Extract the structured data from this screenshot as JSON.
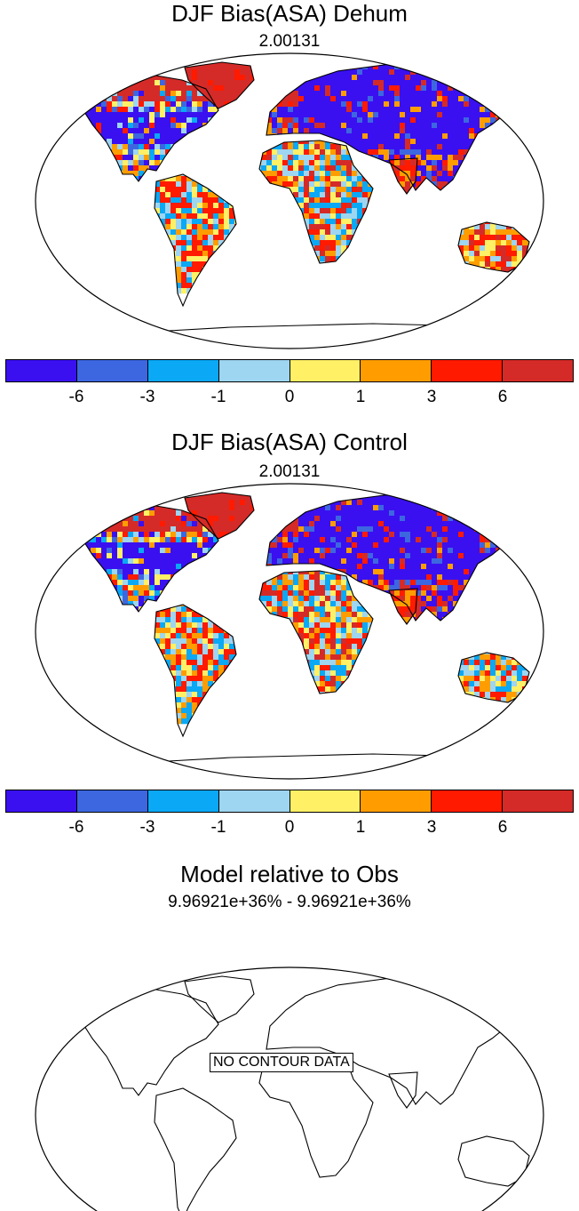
{
  "panels": [
    {
      "title": "DJF Bias(ASA) Dehum",
      "subtitle": "2.00131",
      "has_data": true
    },
    {
      "title": "DJF Bias(ASA) Control",
      "subtitle": "2.00131",
      "has_data": true
    },
    {
      "title": "Model relative to Obs",
      "subtitle": "9.96921e+36% - 9.96921e+36%",
      "has_data": false,
      "message": "NO CONTOUR DATA"
    }
  ],
  "colorbar": {
    "colors": [
      "#3a10f0",
      "#3d67e0",
      "#0aa8f5",
      "#9ed5f0",
      "#fff066",
      "#ff9d00",
      "#ff1a00",
      "#d42b28"
    ],
    "labels": [
      "-6",
      "-3",
      "-1",
      "0",
      "1",
      "3",
      "6"
    ]
  }
}
